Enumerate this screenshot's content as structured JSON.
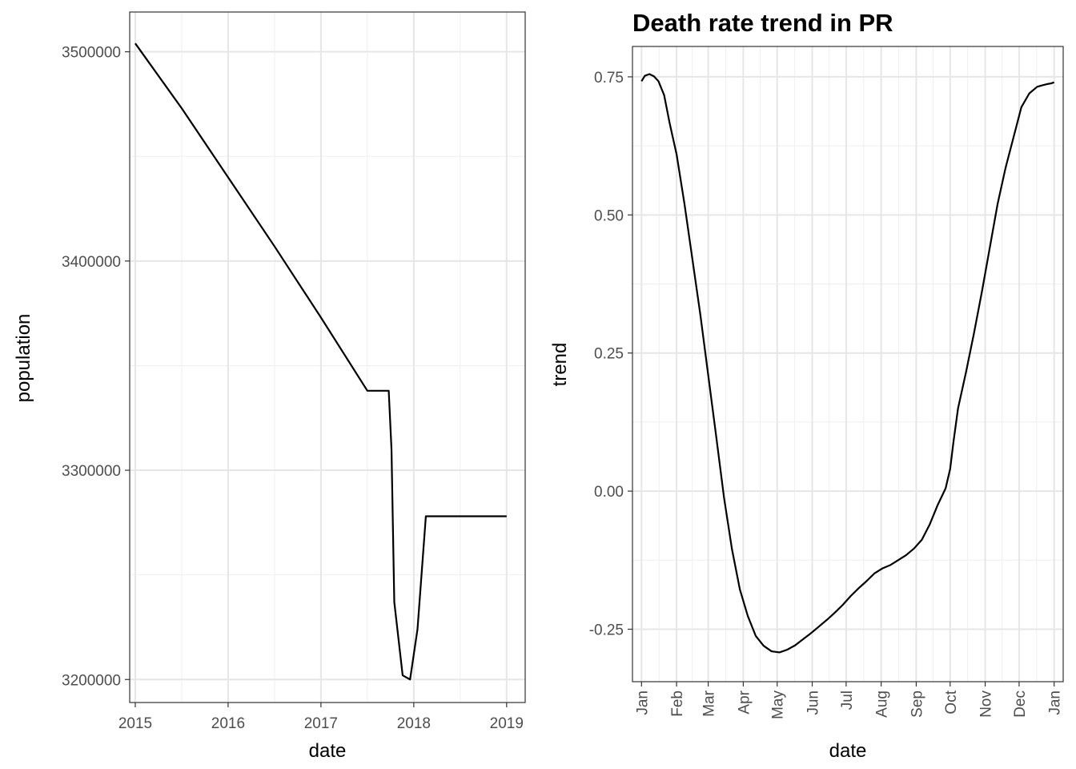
{
  "chart_data": [
    {
      "type": "line",
      "title": "",
      "xlabel": "date",
      "ylabel": "population",
      "xlim": [
        2014.94,
        2019.2
      ],
      "ylim": [
        3189000,
        3519000
      ],
      "x_ticks": [
        2015,
        2016,
        2017,
        2018,
        2019
      ],
      "x_tick_labels": [
        "2015",
        "2016",
        "2017",
        "2018",
        "2019"
      ],
      "y_ticks": [
        3200000,
        3300000,
        3400000,
        3500000
      ],
      "y_tick_labels": [
        "3200000",
        "3300000",
        "3400000",
        "3500000"
      ],
      "grid": true,
      "series": [
        {
          "x": [
            2015.0,
            2015.5,
            2016.0,
            2016.5,
            2017.0,
            2017.5,
            2017.73,
            2017.76,
            2017.79,
            2017.88,
            2017.96,
            2018.04,
            2018.13,
            2018.5,
            2019.0
          ],
          "y": [
            3504000,
            3473000,
            3440000,
            3407000,
            3373000,
            3338000,
            3338000,
            3310000,
            3237000,
            3202000,
            3200000,
            3224000,
            3278000,
            3278000,
            3278000
          ]
        }
      ]
    },
    {
      "type": "line",
      "title": "Death rate trend in PR",
      "xlabel": "date",
      "ylabel": "trend",
      "xlim": [
        -8,
        373
      ],
      "ylim": [
        -0.345,
        0.805
      ],
      "x_ticks": [
        0,
        31,
        59,
        90,
        120,
        151,
        181,
        212,
        243,
        273,
        304,
        334,
        365
      ],
      "x_tick_labels": [
        "Jan",
        "Feb",
        "Mar",
        "Apr",
        "May",
        "Jun",
        "Jul",
        "Aug",
        "Sep",
        "Oct",
        "Nov",
        "Dec",
        "Jan"
      ],
      "y_ticks": [
        -0.25,
        0,
        0.25,
        0.5,
        0.75
      ],
      "y_tick_labels": [
        "-0.25",
        "0.00",
        "0.25",
        "0.50",
        "0.75"
      ],
      "grid": true,
      "series": [
        {
          "x": [
            0,
            3,
            7,
            11,
            15,
            20,
            25,
            31,
            38,
            45,
            52,
            59,
            66,
            73,
            80,
            87,
            94,
            101,
            108,
            115,
            122,
            129,
            136,
            143,
            150,
            157,
            164,
            171,
            178,
            185,
            192,
            199,
            206,
            213,
            220,
            227,
            234,
            241,
            248,
            255,
            262,
            269,
            273,
            276,
            280,
            287,
            294,
            301,
            308,
            315,
            322,
            329,
            336,
            343,
            350,
            355,
            359,
            362,
            365
          ],
          "y": [
            0.742,
            0.752,
            0.755,
            0.751,
            0.742,
            0.717,
            0.665,
            0.61,
            0.52,
            0.42,
            0.32,
            0.21,
            0.1,
            -0.012,
            -0.105,
            -0.178,
            -0.226,
            -0.262,
            -0.28,
            -0.29,
            -0.292,
            -0.287,
            -0.279,
            -0.268,
            -0.257,
            -0.245,
            -0.233,
            -0.22,
            -0.206,
            -0.19,
            -0.176,
            -0.163,
            -0.149,
            -0.14,
            -0.134,
            -0.125,
            -0.116,
            -0.104,
            -0.088,
            -0.06,
            -0.025,
            0.005,
            0.04,
            0.09,
            0.15,
            0.215,
            0.285,
            0.36,
            0.44,
            0.52,
            0.585,
            0.64,
            0.695,
            0.72,
            0.732,
            0.735,
            0.737,
            0.738,
            0.74
          ]
        }
      ]
    }
  ]
}
